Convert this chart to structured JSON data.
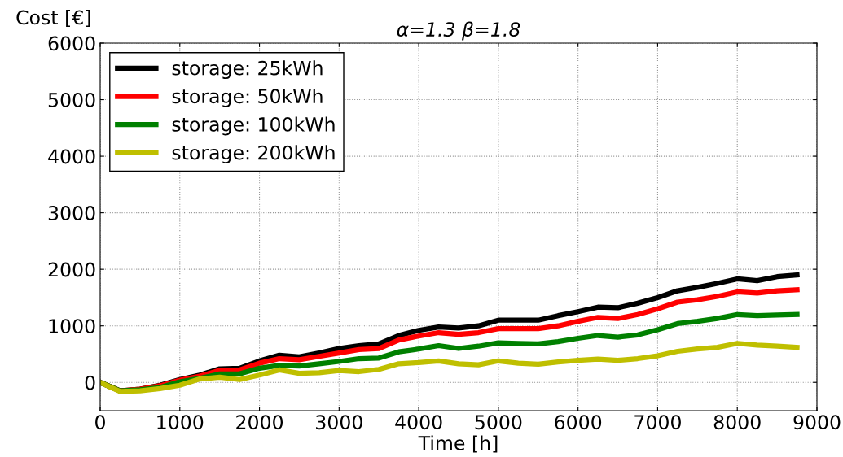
{
  "chart_data": {
    "type": "line",
    "title": "α=1.3 β=1.8",
    "xlabel": "Time [h]",
    "ylabel": "Cost [€]",
    "x": [
      0,
      250,
      500,
      750,
      1000,
      1250,
      1500,
      1750,
      2000,
      2250,
      2500,
      2750,
      3000,
      3250,
      3500,
      3750,
      4000,
      4250,
      4500,
      4750,
      5000,
      5250,
      5500,
      5750,
      6000,
      6250,
      6500,
      6750,
      7000,
      7250,
      7500,
      7750,
      8000,
      8250,
      8500,
      8750
    ],
    "series": [
      {
        "name": "storage: 25kWh",
        "color": "#000000",
        "values": [
          0,
          -150,
          -120,
          -50,
          50,
          130,
          240,
          250,
          380,
          480,
          450,
          520,
          600,
          650,
          680,
          830,
          920,
          980,
          960,
          1000,
          1100,
          1100,
          1100,
          1180,
          1250,
          1330,
          1320,
          1400,
          1500,
          1620,
          1680,
          1750,
          1830,
          1800,
          1870,
          1900
        ]
      },
      {
        "name": "storage: 50kWh",
        "color": "#ff0000",
        "values": [
          0,
          -150,
          -120,
          -60,
          40,
          110,
          210,
          220,
          340,
          420,
          400,
          460,
          520,
          580,
          600,
          750,
          820,
          880,
          850,
          880,
          950,
          950,
          950,
          1000,
          1080,
          1150,
          1130,
          1200,
          1300,
          1420,
          1460,
          1520,
          1600,
          1580,
          1620,
          1640
        ]
      },
      {
        "name": "storage: 100kWh",
        "color": "#008000",
        "values": [
          0,
          -150,
          -130,
          -90,
          10,
          70,
          150,
          150,
          250,
          300,
          290,
          330,
          370,
          420,
          430,
          540,
          590,
          650,
          600,
          640,
          700,
          690,
          680,
          720,
          780,
          830,
          800,
          840,
          930,
          1040,
          1080,
          1130,
          1200,
          1180,
          1190,
          1200
        ]
      },
      {
        "name": "storage: 200kWh",
        "color": "#bfbf00",
        "values": [
          0,
          -160,
          -150,
          -110,
          -50,
          60,
          90,
          50,
          130,
          220,
          160,
          170,
          210,
          190,
          230,
          330,
          350,
          380,
          330,
          310,
          380,
          340,
          320,
          360,
          390,
          410,
          390,
          420,
          470,
          550,
          590,
          620,
          690,
          660,
          640,
          620
        ]
      }
    ],
    "xlim": [
      0,
      9000
    ],
    "xticks": [
      0,
      1000,
      2000,
      3000,
      4000,
      5000,
      6000,
      7000,
      8000,
      9000
    ],
    "ylim": [
      -500,
      6000
    ],
    "yticks": [
      0,
      1000,
      2000,
      3000,
      4000,
      5000,
      6000
    ],
    "grid": true,
    "legend": "top left",
    "line_style": "solid",
    "marker": "none"
  }
}
